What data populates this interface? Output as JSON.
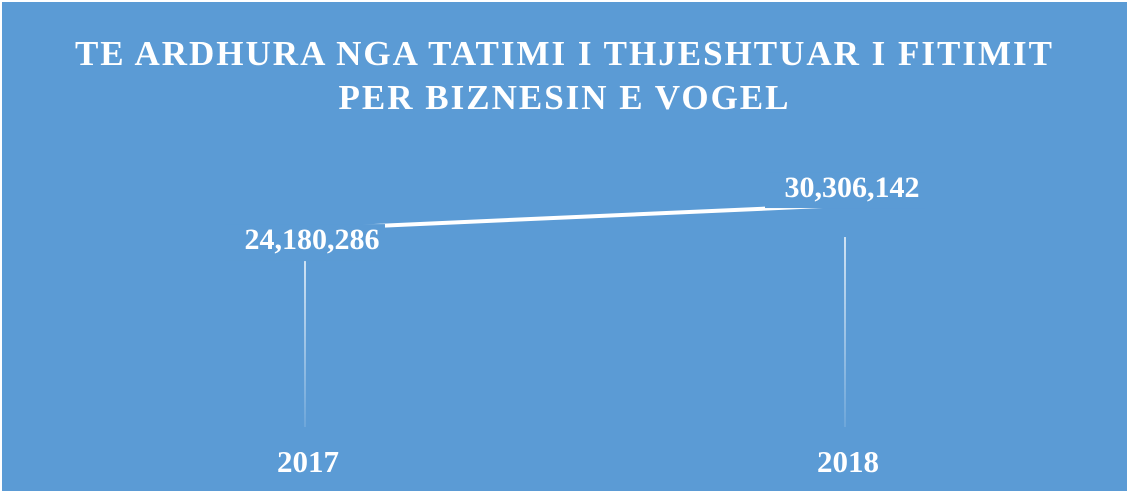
{
  "chart_data": {
    "type": "line",
    "title": "TE ARDHURA NGA TATIMI I THJESHTUAR I FITIMIT PER BIZNESIN E VOGEL",
    "categories": [
      "2017",
      "2018"
    ],
    "values": [
      24180286,
      30306142
    ],
    "value_labels": [
      "24,180,286",
      "30,306,142"
    ],
    "color": "#ffffff",
    "ylim": [
      0,
      40000000
    ]
  }
}
